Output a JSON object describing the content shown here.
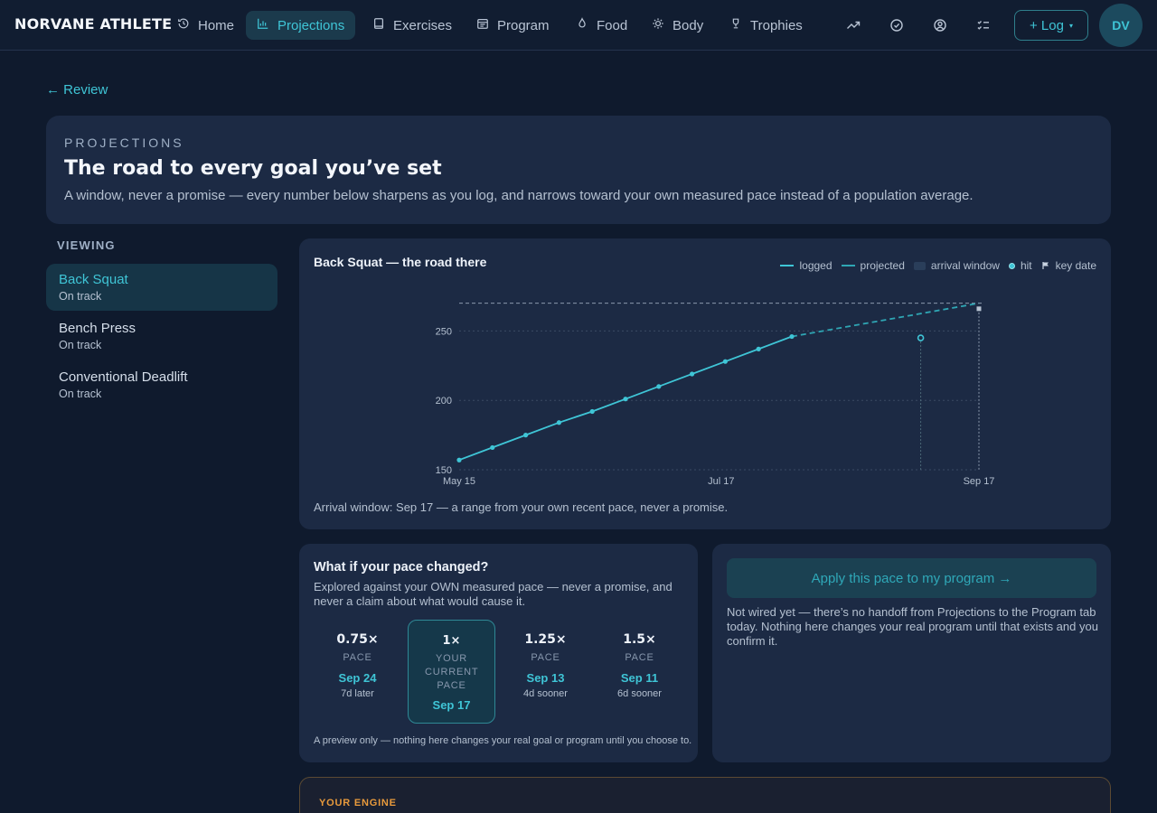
{
  "nav": {
    "brand": "NORVANE ATHLETE",
    "tabs": [
      {
        "label": "Home",
        "icon": "history-icon"
      },
      {
        "label": "Projections",
        "icon": "bar-chart-icon"
      },
      {
        "label": "Exercises",
        "icon": "book-icon"
      },
      {
        "label": "Program",
        "icon": "calendar-icon"
      },
      {
        "label": "Food",
        "icon": "flame-icon"
      },
      {
        "label": "Body",
        "icon": "sun-icon"
      },
      {
        "label": "Trophies",
        "icon": "trophy-icon"
      }
    ],
    "active_tab": "Projections",
    "log_label": "+ Log",
    "log_caret": "▾",
    "avatar_initials": "DV"
  },
  "back_link": "← Review",
  "header": {
    "eyebrow": "PROJECTIONS",
    "title": "The road to every goal you’ve set",
    "subtitle": "A window, never a promise — every number below sharpens as you log, and narrows toward your own measured pace instead of a population average."
  },
  "sidebar": {
    "label": "VIEWING",
    "items": [
      {
        "name": "Back Squat",
        "status": "On track"
      },
      {
        "name": "Bench Press",
        "status": "On track"
      },
      {
        "name": "Conventional Deadlift",
        "status": "On track"
      }
    ]
  },
  "chart_card": {
    "title": "Back Squat — the road there",
    "legend": {
      "logged": "logged",
      "projected": "projected",
      "arrival_window": "arrival window",
      "hit": "hit",
      "key_date": "key date"
    },
    "footnote": "Arrival window: Sep 17 — a range from your own recent pace, never a promise."
  },
  "chart_data": {
    "type": "line",
    "title": "Back Squat — the road there",
    "xlabel": "",
    "ylabel": "",
    "x_tick_labels": [
      "May 15",
      "Jul 17",
      "Sep 17"
    ],
    "y_ticks": [
      150,
      200,
      250
    ],
    "ylim": [
      150,
      275
    ],
    "xlim": [
      "2025-05-15",
      "2025-09-17"
    ],
    "goal_line": 270,
    "grid": true,
    "legend_position": "top-right",
    "series": [
      {
        "name": "logged",
        "points": [
          {
            "x": "2025-05-15",
            "y": 157
          },
          {
            "x": "2025-05-23",
            "y": 166
          },
          {
            "x": "2025-05-31",
            "y": 175
          },
          {
            "x": "2025-06-08",
            "y": 184
          },
          {
            "x": "2025-06-16",
            "y": 192
          },
          {
            "x": "2025-06-24",
            "y": 201
          },
          {
            "x": "2025-07-02",
            "y": 210
          },
          {
            "x": "2025-07-10",
            "y": 219
          },
          {
            "x": "2025-07-18",
            "y": 228
          },
          {
            "x": "2025-07-26",
            "y": 237
          },
          {
            "x": "2025-08-03",
            "y": 246
          }
        ]
      },
      {
        "name": "projected",
        "points": [
          {
            "x": "2025-08-03",
            "y": 246
          },
          {
            "x": "2025-09-17",
            "y": 270
          }
        ]
      }
    ],
    "markers": [
      {
        "kind": "hit",
        "x": "2025-09-03",
        "y": 245
      },
      {
        "kind": "key date",
        "x": "2025-09-17",
        "y": 266
      }
    ],
    "colors": {
      "line": "#3fc5d6",
      "grid": "#3a4a63",
      "goal": "#8a98ad"
    }
  },
  "whatif": {
    "title": "What if your pace changed?",
    "subtitle": "Explored against your OWN measured pace — never a promise, and never a claim about what would cause it.",
    "options": [
      {
        "mult": "0.75×",
        "label": "PACE",
        "date": "Sep 24",
        "delta": "7d later",
        "active": false
      },
      {
        "mult": "1×",
        "label": "YOUR CURRENT PACE",
        "date": "Sep 17",
        "delta": "",
        "active": true
      },
      {
        "mult": "1.25×",
        "label": "PACE",
        "date": "Sep 13",
        "delta": "4d sooner",
        "active": false
      },
      {
        "mult": "1.5×",
        "label": "PACE",
        "date": "Sep 11",
        "delta": "6d sooner",
        "active": false
      }
    ],
    "footnote": "A preview only — nothing here changes your real goal or program until you choose to."
  },
  "apply": {
    "button_label": "Apply this pace to my program →",
    "note": "Not wired yet — there’s no handoff from Projections to the Program tab today. Nothing here changes your real program until that exists and you confirm it."
  },
  "engine": {
    "label": "YOUR ENGINE"
  },
  "colors": {
    "background": "#0f1a2d",
    "card": "#1c2a44",
    "accent": "#3fc5d6",
    "engine_accent": "#e89a3c"
  }
}
